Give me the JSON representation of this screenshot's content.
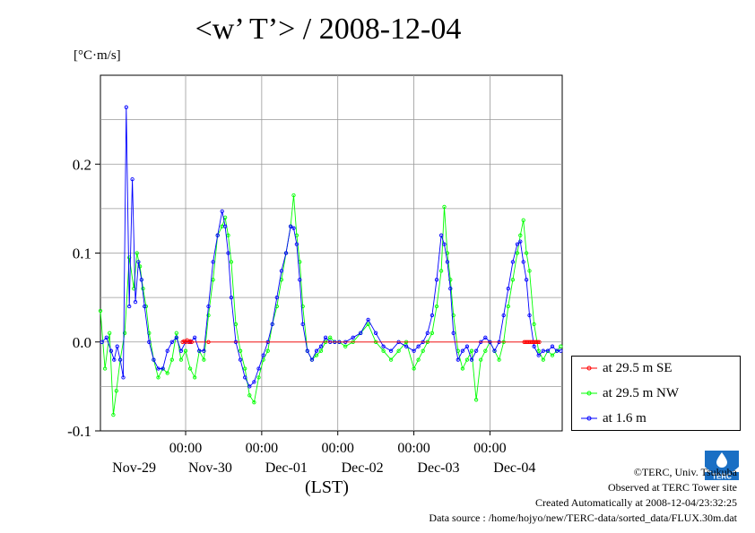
{
  "title": "<w’ T’> / 2008-12-04",
  "unit_label": "[°C·m/s]",
  "x_axis_label": "(LST)",
  "footer": {
    "copyright": "©TERC, Univ. Tsukuba",
    "observed": "Observed at TERC Tower site",
    "created": "Created Automatically at 2008-12-04/23:32:25",
    "source": "Data source : /home/hojyo/new/TERC-data/sorted_data/FLUX.30m.dat"
  },
  "logo_text": "TERC",
  "chart_data": {
    "type": "line",
    "title": "<w’ T’> / 2008-12-04",
    "ylabel": "[°C·m/s]",
    "xlabel": "(LST)",
    "xlim": [
      -0.12,
      5.95
    ],
    "ylim": [
      -0.1,
      0.3
    ],
    "y_ticks": [
      -0.1,
      0.0,
      0.1,
      0.2
    ],
    "y_tick_labels": [
      "-0.1",
      "0.0",
      "0.1",
      "0.2"
    ],
    "x_ticks": [
      1,
      2,
      3,
      4,
      5
    ],
    "x_tick_labels": [
      "00:00",
      "00:00",
      "00:00",
      "00:00",
      "00:00"
    ],
    "day_labels": [
      {
        "x": 0.5,
        "label": "Nov-29"
      },
      {
        "x": 1.5,
        "label": "Nov-30"
      },
      {
        "x": 2.5,
        "label": "Dec-01"
      },
      {
        "x": 3.5,
        "label": "Dec-02"
      },
      {
        "x": 4.5,
        "label": "Dec-03"
      },
      {
        "x": 5.5,
        "label": "Dec-04"
      }
    ],
    "grid": true,
    "legend_position": "bottom-right, outside plot",
    "series": [
      {
        "name": "at 29.5 m SE",
        "color": "#ff0000",
        "x": [
          0.96,
          0.98,
          1.0,
          1.02,
          1.04,
          1.06,
          1.08,
          1.3,
          5.45,
          5.47,
          5.49,
          5.51,
          5.53,
          5.55,
          5.57,
          5.59,
          5.61,
          5.63,
          5.65
        ],
        "y": [
          0.0,
          0.001,
          0.0,
          0.002,
          0.0,
          0.001,
          0.0,
          0.0,
          0.0,
          0.0,
          0.0,
          0.0,
          0.0,
          0.0,
          0.0,
          0.0,
          0.0,
          0.0,
          0.0
        ]
      },
      {
        "name": "at 29.5 m NW",
        "color": "#00ff00",
        "x": [
          -0.12,
          -0.06,
          0.0,
          0.05,
          0.09,
          0.14,
          0.2,
          0.26,
          0.32,
          0.36,
          0.4,
          0.44,
          0.48,
          0.52,
          0.58,
          0.64,
          0.7,
          0.76,
          0.82,
          0.88,
          0.94,
          1.0,
          1.06,
          1.12,
          1.18,
          1.24,
          1.3,
          1.36,
          1.42,
          1.48,
          1.52,
          1.56,
          1.6,
          1.66,
          1.72,
          1.78,
          1.84,
          1.9,
          1.96,
          2.02,
          2.08,
          2.14,
          2.2,
          2.26,
          2.32,
          2.38,
          2.42,
          2.46,
          2.5,
          2.54,
          2.6,
          2.66,
          2.72,
          2.78,
          2.84,
          2.9,
          2.96,
          3.02,
          3.1,
          3.2,
          3.3,
          3.4,
          3.5,
          3.6,
          3.7,
          3.8,
          3.9,
          4.0,
          4.06,
          4.12,
          4.18,
          4.24,
          4.3,
          4.36,
          4.4,
          4.44,
          4.48,
          4.52,
          4.58,
          4.64,
          4.7,
          4.76,
          4.82,
          4.88,
          4.94,
          5.0,
          5.06,
          5.12,
          5.18,
          5.24,
          5.3,
          5.36,
          5.4,
          5.44,
          5.48,
          5.52,
          5.58,
          5.64,
          5.7,
          5.76,
          5.82,
          5.88,
          5.93
        ],
        "y": [
          0.035,
          -0.03,
          0.01,
          -0.082,
          -0.055,
          -0.02,
          0.01,
          0.095,
          0.06,
          0.1,
          0.085,
          0.06,
          0.04,
          0.01,
          -0.02,
          -0.04,
          -0.03,
          -0.035,
          -0.02,
          0.01,
          -0.02,
          -0.01,
          -0.03,
          -0.04,
          -0.01,
          -0.02,
          0.03,
          0.07,
          0.12,
          0.13,
          0.14,
          0.12,
          0.09,
          0.02,
          -0.01,
          -0.03,
          -0.06,
          -0.068,
          -0.04,
          -0.02,
          -0.01,
          0.02,
          0.04,
          0.07,
          0.1,
          0.13,
          0.165,
          0.12,
          0.09,
          0.04,
          -0.01,
          -0.02,
          -0.015,
          -0.01,
          0.0,
          0.005,
          0.0,
          0.0,
          -0.005,
          0.0,
          0.01,
          0.02,
          0.0,
          -0.01,
          -0.02,
          -0.01,
          0.0,
          -0.03,
          -0.02,
          -0.01,
          0.0,
          0.01,
          0.04,
          0.08,
          0.152,
          0.1,
          0.07,
          0.03,
          -0.01,
          -0.03,
          -0.02,
          -0.01,
          -0.065,
          -0.02,
          -0.01,
          0.0,
          -0.01,
          -0.02,
          0.0,
          0.04,
          0.07,
          0.1,
          0.12,
          0.137,
          0.1,
          0.08,
          0.02,
          -0.01,
          -0.02,
          -0.01,
          -0.015,
          -0.01,
          -0.005
        ]
      },
      {
        "name": "at 1.6 m",
        "color": "#0000ff",
        "x": [
          -0.1,
          -0.04,
          0.02,
          0.06,
          0.1,
          0.14,
          0.18,
          0.22,
          0.26,
          0.3,
          0.34,
          0.38,
          0.42,
          0.46,
          0.52,
          0.58,
          0.64,
          0.7,
          0.76,
          0.82,
          0.88,
          0.94,
          1.0,
          1.06,
          1.12,
          1.18,
          1.24,
          1.3,
          1.36,
          1.42,
          1.48,
          1.52,
          1.56,
          1.6,
          1.66,
          1.72,
          1.78,
          1.84,
          1.9,
          1.96,
          2.02,
          2.08,
          2.14,
          2.2,
          2.26,
          2.32,
          2.38,
          2.42,
          2.46,
          2.5,
          2.54,
          2.6,
          2.66,
          2.72,
          2.78,
          2.84,
          2.9,
          2.96,
          3.02,
          3.1,
          3.2,
          3.3,
          3.4,
          3.5,
          3.6,
          3.7,
          3.8,
          3.9,
          4.0,
          4.06,
          4.12,
          4.18,
          4.24,
          4.3,
          4.36,
          4.4,
          4.44,
          4.48,
          4.52,
          4.58,
          4.64,
          4.7,
          4.76,
          4.82,
          4.88,
          4.94,
          5.0,
          5.06,
          5.12,
          5.18,
          5.24,
          5.3,
          5.36,
          5.4,
          5.44,
          5.48,
          5.52,
          5.58,
          5.64,
          5.7,
          5.76,
          5.82,
          5.88,
          5.93
        ],
        "y": [
          0.0,
          0.005,
          -0.01,
          -0.02,
          -0.005,
          -0.02,
          -0.04,
          0.264,
          0.04,
          0.183,
          0.045,
          0.09,
          0.07,
          0.04,
          0.0,
          -0.02,
          -0.03,
          -0.03,
          -0.01,
          0.0,
          0.005,
          -0.01,
          0.0,
          0.0,
          0.005,
          -0.01,
          -0.01,
          0.04,
          0.09,
          0.12,
          0.147,
          0.13,
          0.1,
          0.05,
          0.0,
          -0.02,
          -0.04,
          -0.05,
          -0.045,
          -0.03,
          -0.015,
          0.0,
          0.02,
          0.05,
          0.08,
          0.1,
          0.13,
          0.128,
          0.11,
          0.07,
          0.02,
          -0.01,
          -0.02,
          -0.01,
          -0.005,
          0.005,
          0.0,
          0.0,
          0.0,
          0.0,
          0.005,
          0.01,
          0.025,
          0.01,
          -0.005,
          -0.01,
          0.0,
          -0.005,
          -0.01,
          -0.005,
          0.0,
          0.01,
          0.03,
          0.07,
          0.12,
          0.11,
          0.09,
          0.06,
          0.01,
          -0.02,
          -0.01,
          -0.005,
          -0.02,
          -0.01,
          0.0,
          0.005,
          0.0,
          -0.01,
          0.0,
          0.03,
          0.06,
          0.09,
          0.11,
          0.113,
          0.09,
          0.07,
          0.03,
          -0.005,
          -0.015,
          -0.01,
          -0.01,
          -0.005,
          -0.01,
          -0.01
        ]
      }
    ]
  }
}
